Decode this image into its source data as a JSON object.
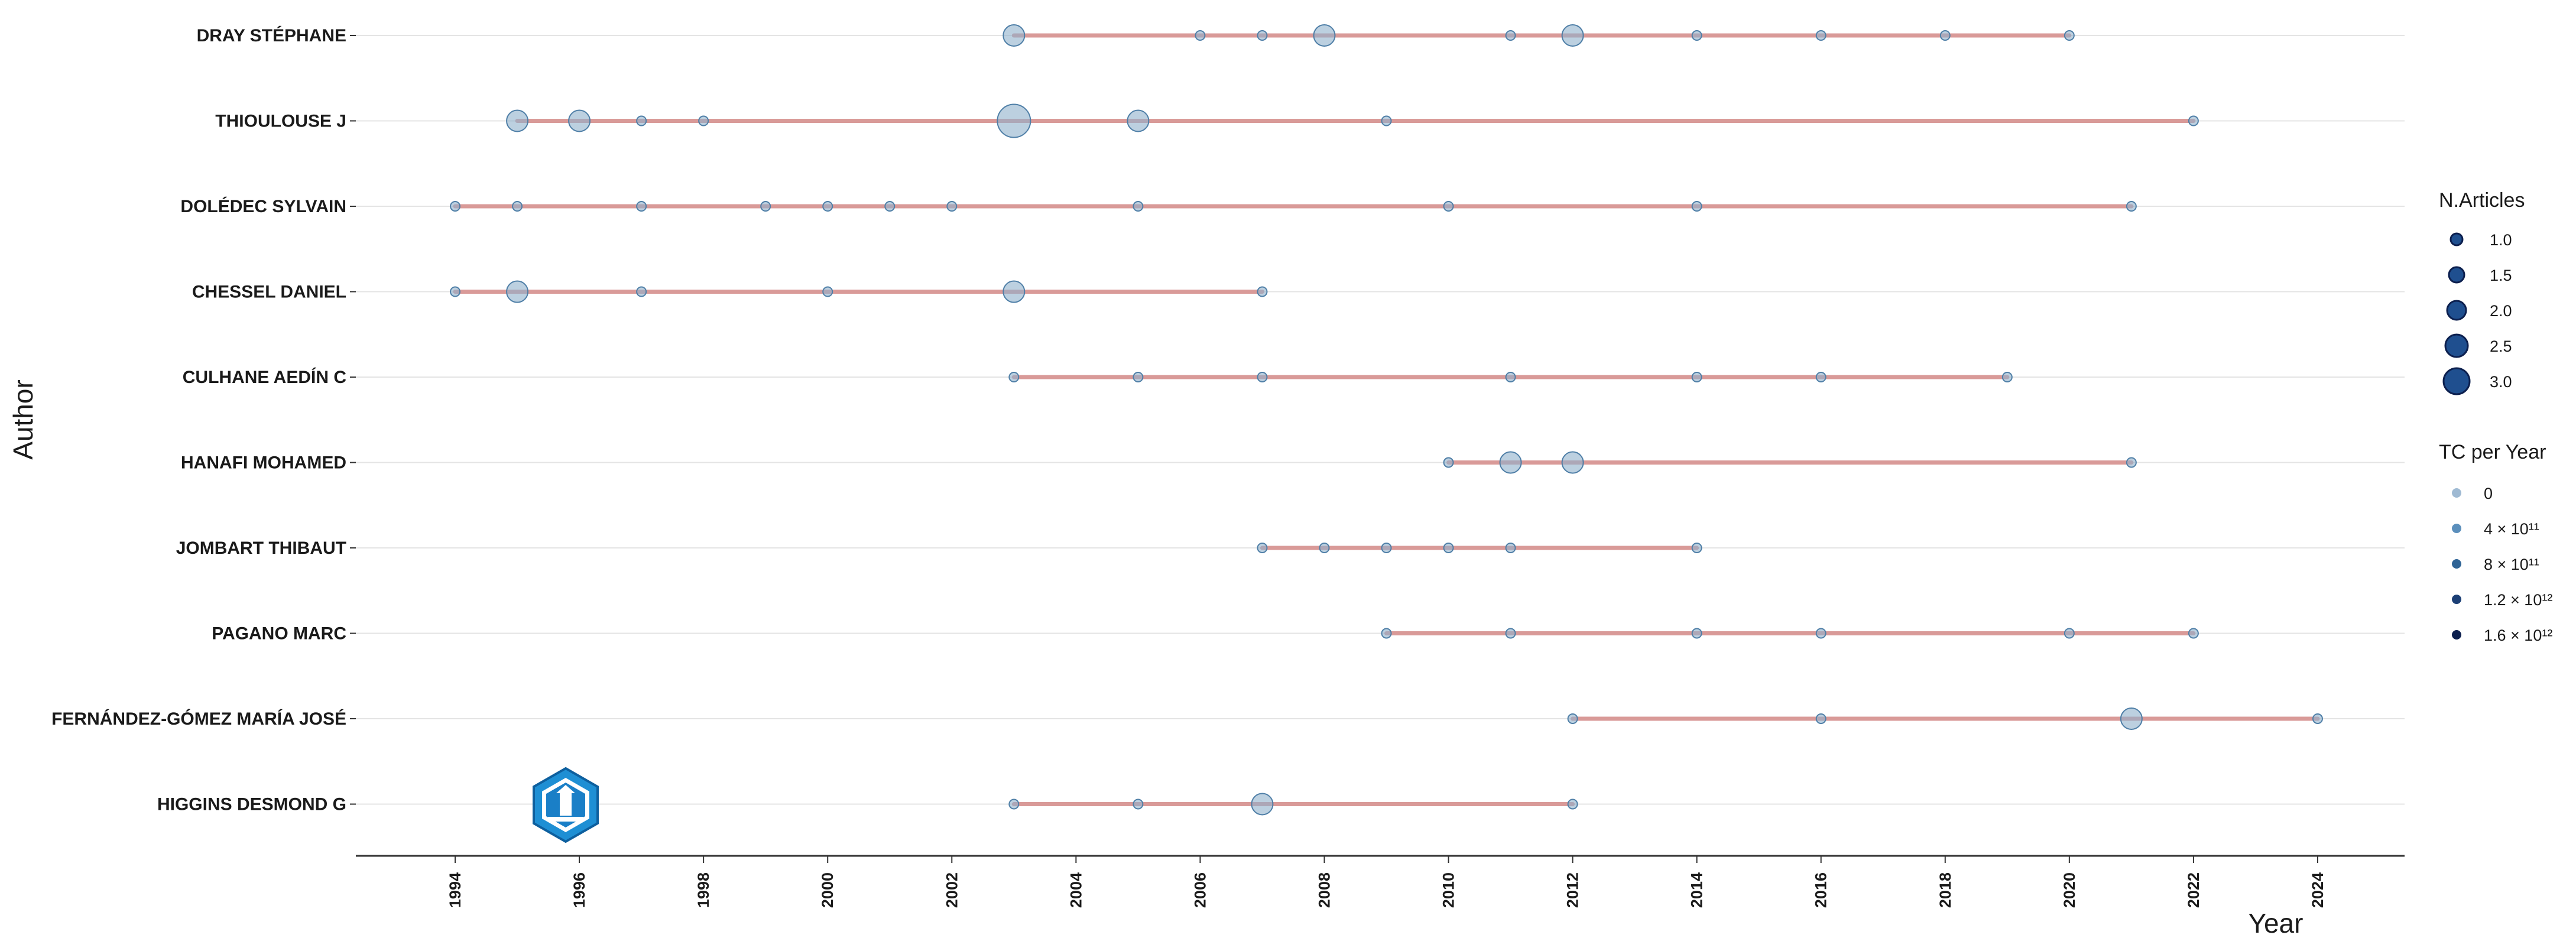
{
  "chart_data": {
    "type": "scatter",
    "title": "",
    "xlabel": "Year",
    "ylabel": "Author",
    "xlim": [
      1992.4,
      2025.4
    ],
    "x_ticks": [
      1994,
      1996,
      1998,
      2000,
      2002,
      2004,
      2006,
      2008,
      2010,
      2012,
      2014,
      2016,
      2018,
      2020,
      2022,
      2024
    ],
    "grid": "horizontal",
    "legend_position": "right",
    "colors": {
      "line": "#d99a98",
      "bubble_fill": "#8fb0cc",
      "bubble_stroke": "#4f7fa7",
      "axis": "#333333",
      "grid": "#e4e4e4"
    },
    "size_legend": {
      "title": "N.Articles",
      "entries": [
        {
          "label": "1.0",
          "value": 1.0
        },
        {
          "label": "1.5",
          "value": 1.5
        },
        {
          "label": "2.0",
          "value": 2.0
        },
        {
          "label": "2.5",
          "value": 2.5
        },
        {
          "label": "3.0",
          "value": 3.0
        }
      ]
    },
    "color_legend": {
      "title": "TC per Year",
      "entries": [
        {
          "label": "0",
          "color": "#9fbad3"
        },
        {
          "label": "4 × 10¹¹",
          "color": "#5b8fbc"
        },
        {
          "label": "8 × 10¹¹",
          "color": "#2f6496"
        },
        {
          "label": "1.2 × 10¹²",
          "color": "#1b3f75"
        },
        {
          "label": "1.6 × 10¹²",
          "color": "#0c1f4e"
        }
      ]
    },
    "series": [
      {
        "author": "DRAY STÉPHANE",
        "points": [
          [
            2003,
            2
          ],
          [
            2006,
            1
          ],
          [
            2007,
            1
          ],
          [
            2008,
            2
          ],
          [
            2011,
            1
          ],
          [
            2012,
            2
          ],
          [
            2014,
            1
          ],
          [
            2016,
            1
          ],
          [
            2018,
            1
          ],
          [
            2020,
            1
          ]
        ]
      },
      {
        "author": "THIOULOUSE J",
        "points": [
          [
            1995,
            2
          ],
          [
            1996,
            2
          ],
          [
            1997,
            1
          ],
          [
            1998,
            1
          ],
          [
            2003,
            3
          ],
          [
            2005,
            2
          ],
          [
            2009,
            1
          ],
          [
            2022,
            1
          ]
        ]
      },
      {
        "author": "DOLÉDEC SYLVAIN",
        "points": [
          [
            1994,
            1
          ],
          [
            1995,
            1
          ],
          [
            1997,
            1
          ],
          [
            1999,
            1
          ],
          [
            2000,
            1
          ],
          [
            2001,
            1
          ],
          [
            2002,
            1
          ],
          [
            2005,
            1
          ],
          [
            2010,
            1
          ],
          [
            2014,
            1
          ],
          [
            2021,
            1
          ]
        ]
      },
      {
        "author": "CHESSEL DANIEL",
        "points": [
          [
            1994,
            1
          ],
          [
            1995,
            2
          ],
          [
            1997,
            1
          ],
          [
            2000,
            1
          ],
          [
            2003,
            2
          ],
          [
            2007,
            1
          ]
        ]
      },
      {
        "author": "CULHANE AEDÍN C",
        "points": [
          [
            2003,
            1
          ],
          [
            2005,
            1
          ],
          [
            2007,
            1
          ],
          [
            2011,
            1
          ],
          [
            2014,
            1
          ],
          [
            2016,
            1
          ],
          [
            2019,
            1
          ]
        ]
      },
      {
        "author": "HANAFI MOHAMED",
        "points": [
          [
            2010,
            1
          ],
          [
            2011,
            2
          ],
          [
            2012,
            2
          ],
          [
            2021,
            1
          ]
        ]
      },
      {
        "author": "JOMBART THIBAUT",
        "points": [
          [
            2007,
            1
          ],
          [
            2008,
            1
          ],
          [
            2009,
            1
          ],
          [
            2010,
            1
          ],
          [
            2011,
            1
          ],
          [
            2014,
            1
          ]
        ]
      },
      {
        "author": "PAGANO MARC",
        "points": [
          [
            2009,
            1
          ],
          [
            2011,
            1
          ],
          [
            2014,
            1
          ],
          [
            2016,
            1
          ],
          [
            2020,
            1
          ],
          [
            2022,
            1
          ]
        ]
      },
      {
        "author": "FERNÁNDEZ-GÓMEZ MARÍA JOSÉ",
        "points": [
          [
            2012,
            1
          ],
          [
            2016,
            1
          ],
          [
            2021,
            2
          ],
          [
            2024,
            1
          ]
        ]
      },
      {
        "author": "HIGGINS DESMOND G",
        "points": [
          [
            2003,
            1
          ],
          [
            2005,
            1
          ],
          [
            2007,
            2
          ],
          [
            2012,
            1
          ]
        ]
      }
    ]
  }
}
